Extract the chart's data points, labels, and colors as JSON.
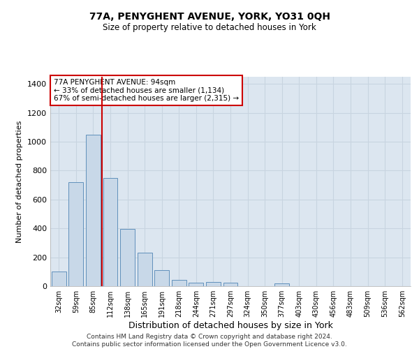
{
  "title": "77A, PENYGHENT AVENUE, YORK, YO31 0QH",
  "subtitle": "Size of property relative to detached houses in York",
  "xlabel": "Distribution of detached houses by size in York",
  "ylabel": "Number of detached properties",
  "footer_line1": "Contains HM Land Registry data © Crown copyright and database right 2024.",
  "footer_line2": "Contains public sector information licensed under the Open Government Licence v3.0.",
  "bar_labels": [
    "32sqm",
    "59sqm",
    "85sqm",
    "112sqm",
    "138sqm",
    "165sqm",
    "191sqm",
    "218sqm",
    "244sqm",
    "271sqm",
    "297sqm",
    "324sqm",
    "350sqm",
    "377sqm",
    "403sqm",
    "430sqm",
    "456sqm",
    "483sqm",
    "509sqm",
    "536sqm",
    "562sqm"
  ],
  "bar_values": [
    100,
    720,
    1050,
    750,
    395,
    230,
    110,
    45,
    25,
    28,
    25,
    0,
    0,
    20,
    0,
    0,
    0,
    0,
    0,
    0,
    0
  ],
  "bar_color": "#c8d8e8",
  "bar_edge_color": "#6090bb",
  "grid_color": "#c8d4e0",
  "background_color": "#dce6f0",
  "annotation_text": "77A PENYGHENT AVENUE: 94sqm\n← 33% of detached houses are smaller (1,134)\n67% of semi-detached houses are larger (2,315) →",
  "vline_color": "#cc0000",
  "annotation_box_color": "#cc0000",
  "ylim": [
    0,
    1450
  ],
  "yticks": [
    0,
    200,
    400,
    600,
    800,
    1000,
    1200,
    1400
  ]
}
